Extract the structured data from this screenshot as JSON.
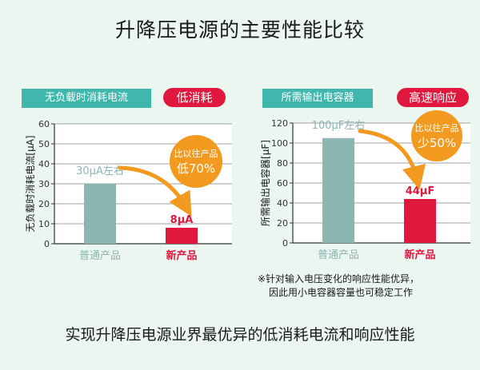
{
  "title": "升降压电源的主要性能比较",
  "footer_text": "实现升降压电源业界最优异的低消耗电流和响应性能",
  "colors": {
    "background": "#eaf6ef",
    "teal": "#3fb7ad",
    "bar_old": "#8cb6b2",
    "bar_new": "#e0183e",
    "orange": "#f29a1f",
    "grid": "#a0a0a0"
  },
  "chart_data": [
    {
      "type": "bar",
      "header_label": "无负载时消耗电流",
      "badge": "低消耗",
      "ylabel": "无负载时消耗电流[μA]",
      "ylim": [
        0,
        60
      ],
      "yticks": [
        "0",
        "10",
        "20",
        "30",
        "40",
        "50",
        "60"
      ],
      "categories": [
        "普通产品",
        "新产品"
      ],
      "values": [
        30,
        8
      ],
      "value_labels": [
        "30μA左右",
        "8μA"
      ],
      "callout": [
        "比以往产品",
        "低70%"
      ]
    },
    {
      "type": "bar",
      "header_label": "所需输出电容器",
      "badge": "高速响应",
      "ylabel": "所需输出电容器[μF]",
      "ylim": [
        0,
        120
      ],
      "yticks": [
        "0",
        "20",
        "40",
        "60",
        "80",
        "100",
        "120"
      ],
      "categories": [
        "普通产品",
        "新产品"
      ],
      "values": [
        105,
        44
      ],
      "value_labels": [
        "100μF左右",
        "44μF"
      ],
      "callout": [
        "比以往产品",
        "少50%"
      ],
      "footnote": [
        "※针对输入电压变化的响应性能优异，",
        "因此用小电容器容量也可稳定工作"
      ]
    }
  ]
}
